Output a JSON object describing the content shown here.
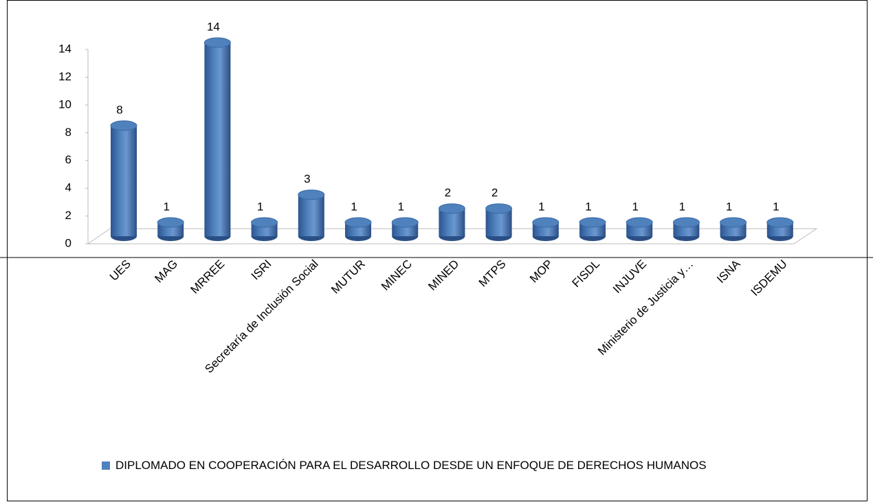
{
  "chart_data": {
    "type": "bar3d",
    "categories": [
      "UES",
      "MAG",
      "MRREE",
      "ISRI",
      "Secretaría de Inclusión Social",
      "MUTUR",
      "MINEC",
      "MINED",
      "MTPS",
      "MOP",
      "FISDL",
      "INJUVE",
      "Ministerio de Justicia y…",
      "ISNA",
      "ISDEMU"
    ],
    "series": [
      {
        "name": "DIPLOMADO EN COOPERACIÓN PARA EL DESARROLLO DESDE UN ENFOQUE DE DERECHOS HUMANOS",
        "color": "#4f81bd",
        "values": [
          8,
          1,
          14,
          1,
          3,
          1,
          1,
          2,
          2,
          1,
          1,
          1,
          1,
          1,
          1
        ]
      }
    ],
    "ylim": [
      0,
      14
    ],
    "yticks": [
      0,
      2,
      4,
      6,
      8,
      10,
      12,
      14
    ],
    "legend": "bottom"
  }
}
